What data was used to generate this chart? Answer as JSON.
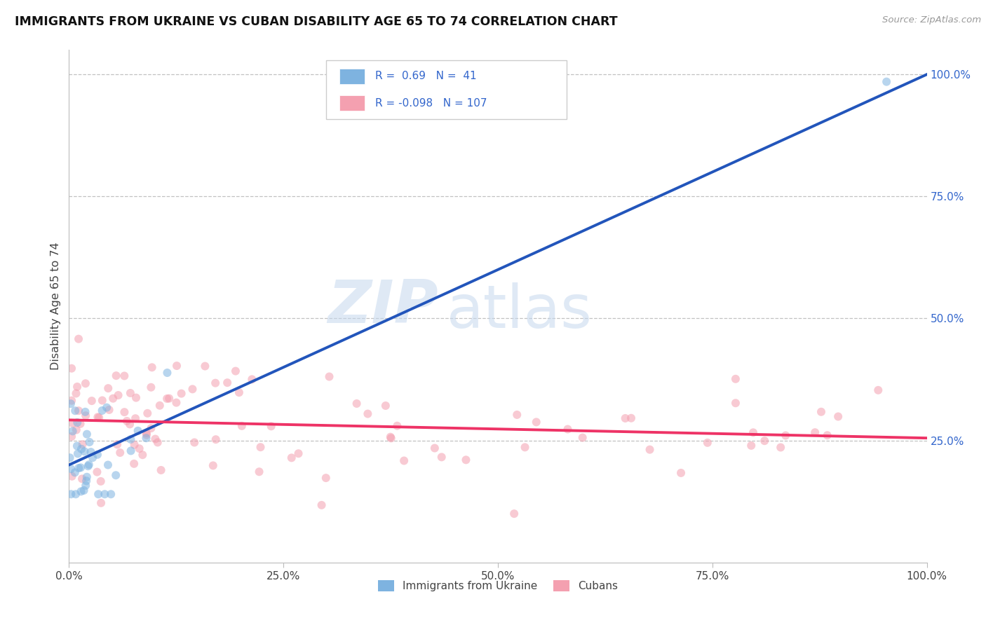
{
  "title": "IMMIGRANTS FROM UKRAINE VS CUBAN DISABILITY AGE 65 TO 74 CORRELATION CHART",
  "source_text": "Source: ZipAtlas.com",
  "ylabel": "Disability Age 65 to 74",
  "ukraine_R": 0.69,
  "ukraine_N": 41,
  "cuban_R": -0.098,
  "cuban_N": 107,
  "ukraine_color": "#7EB3E0",
  "cuban_color": "#F4A0B0",
  "ukraine_line_color": "#2255BB",
  "cuban_line_color": "#EE3366",
  "background_color": "#FFFFFF",
  "grid_color": "#BBBBBB",
  "title_color": "#111111",
  "axis_label_color": "#444444",
  "tick_label_color": "#444444",
  "right_tick_color": "#3366CC",
  "watermark_color": "#C5D8EE",
  "legend_ukraine_label": "Immigrants from Ukraine",
  "legend_cuban_label": "Cubans",
  "xlim": [
    0.0,
    1.0
  ],
  "ylim": [
    0.0,
    1.05
  ],
  "xtick_positions": [
    0.0,
    0.25,
    0.5,
    0.75,
    1.0
  ],
  "xtick_labels": [
    "0.0%",
    "25.0%",
    "50.0%",
    "75.0%",
    "100.0%"
  ],
  "ytick_positions": [
    0.25,
    0.5,
    0.75,
    1.0
  ],
  "ytick_labels": [
    "25.0%",
    "50.0%",
    "75.0%",
    "100.0%"
  ],
  "marker_size": 75,
  "marker_alpha": 0.55,
  "line_width": 2.8,
  "ukraine_line_x": [
    0.0,
    1.0
  ],
  "ukraine_line_y": [
    0.2,
    1.0
  ],
  "cuban_line_x": [
    0.0,
    1.0
  ],
  "cuban_line_y": [
    0.292,
    0.255
  ]
}
